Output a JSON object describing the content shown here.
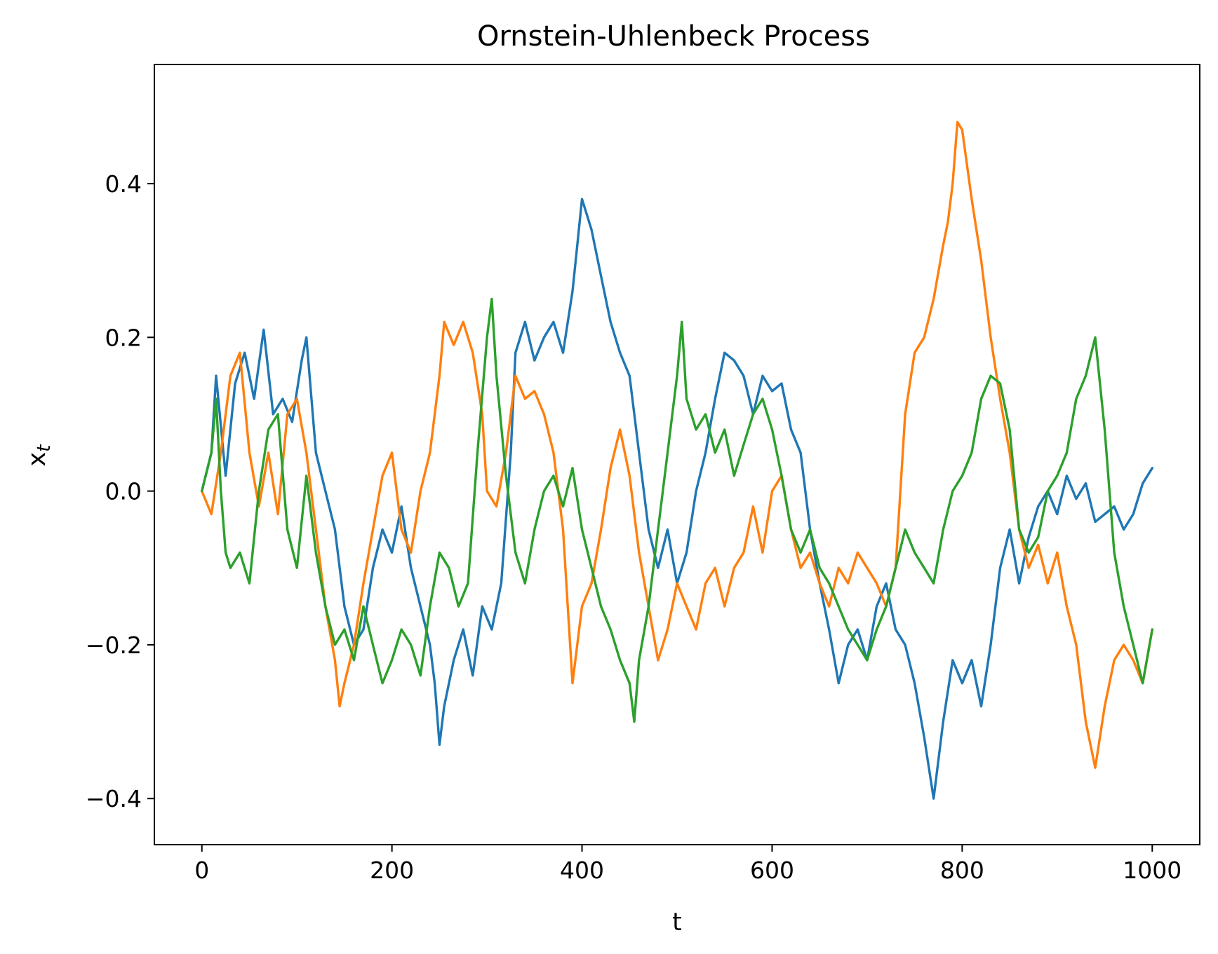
{
  "chart_data": {
    "type": "line",
    "title": "Ornstein-Uhlenbeck Process",
    "xlabel": "t",
    "ylabel_base": "x",
    "ylabel_sub": "t",
    "xlim": [
      -50,
      1050
    ],
    "ylim": [
      -0.46,
      0.555
    ],
    "xticks": [
      0,
      200,
      400,
      600,
      800,
      1000
    ],
    "xtick_labels": [
      "0",
      "200",
      "400",
      "600",
      "800",
      "1000"
    ],
    "yticks": [
      -0.4,
      -0.2,
      0.0,
      0.2,
      0.4
    ],
    "ytick_labels": [
      "−0.4",
      "−0.2",
      "0.0",
      "0.2",
      "0.4"
    ],
    "grid": false,
    "series": [
      {
        "color": "#1f77b4",
        "points": [
          [
            0,
            0.0
          ],
          [
            10,
            0.05
          ],
          [
            15,
            0.15
          ],
          [
            25,
            0.02
          ],
          [
            35,
            0.14
          ],
          [
            45,
            0.18
          ],
          [
            55,
            0.12
          ],
          [
            65,
            0.21
          ],
          [
            75,
            0.1
          ],
          [
            85,
            0.12
          ],
          [
            95,
            0.09
          ],
          [
            105,
            0.17
          ],
          [
            110,
            0.2
          ],
          [
            120,
            0.05
          ],
          [
            130,
            0.0
          ],
          [
            140,
            -0.05
          ],
          [
            150,
            -0.15
          ],
          [
            160,
            -0.2
          ],
          [
            170,
            -0.18
          ],
          [
            180,
            -0.1
          ],
          [
            190,
            -0.05
          ],
          [
            200,
            -0.08
          ],
          [
            210,
            -0.02
          ],
          [
            220,
            -0.1
          ],
          [
            230,
            -0.15
          ],
          [
            240,
            -0.2
          ],
          [
            245,
            -0.25
          ],
          [
            250,
            -0.33
          ],
          [
            255,
            -0.28
          ],
          [
            265,
            -0.22
          ],
          [
            275,
            -0.18
          ],
          [
            285,
            -0.24
          ],
          [
            295,
            -0.15
          ],
          [
            305,
            -0.18
          ],
          [
            315,
            -0.12
          ],
          [
            325,
            0.05
          ],
          [
            330,
            0.18
          ],
          [
            340,
            0.22
          ],
          [
            350,
            0.17
          ],
          [
            360,
            0.2
          ],
          [
            370,
            0.22
          ],
          [
            380,
            0.18
          ],
          [
            390,
            0.26
          ],
          [
            395,
            0.32
          ],
          [
            400,
            0.38
          ],
          [
            410,
            0.34
          ],
          [
            420,
            0.28
          ],
          [
            430,
            0.22
          ],
          [
            440,
            0.18
          ],
          [
            450,
            0.15
          ],
          [
            460,
            0.05
          ],
          [
            470,
            -0.05
          ],
          [
            480,
            -0.1
          ],
          [
            490,
            -0.05
          ],
          [
            500,
            -0.12
          ],
          [
            510,
            -0.08
          ],
          [
            520,
            0.0
          ],
          [
            530,
            0.05
          ],
          [
            540,
            0.12
          ],
          [
            550,
            0.18
          ],
          [
            560,
            0.17
          ],
          [
            570,
            0.15
          ],
          [
            580,
            0.1
          ],
          [
            590,
            0.15
          ],
          [
            600,
            0.13
          ],
          [
            610,
            0.14
          ],
          [
            620,
            0.08
          ],
          [
            630,
            0.05
          ],
          [
            640,
            -0.05
          ],
          [
            650,
            -0.12
          ],
          [
            660,
            -0.18
          ],
          [
            670,
            -0.25
          ],
          [
            680,
            -0.2
          ],
          [
            690,
            -0.18
          ],
          [
            700,
            -0.22
          ],
          [
            710,
            -0.15
          ],
          [
            720,
            -0.12
          ],
          [
            730,
            -0.18
          ],
          [
            740,
            -0.2
          ],
          [
            750,
            -0.25
          ],
          [
            760,
            -0.32
          ],
          [
            770,
            -0.4
          ],
          [
            780,
            -0.3
          ],
          [
            790,
            -0.22
          ],
          [
            800,
            -0.25
          ],
          [
            810,
            -0.22
          ],
          [
            820,
            -0.28
          ],
          [
            830,
            -0.2
          ],
          [
            840,
            -0.1
          ],
          [
            850,
            -0.05
          ],
          [
            860,
            -0.12
          ],
          [
            870,
            -0.06
          ],
          [
            880,
            -0.02
          ],
          [
            890,
            0.0
          ],
          [
            900,
            -0.03
          ],
          [
            910,
            0.02
          ],
          [
            920,
            -0.01
          ],
          [
            930,
            0.01
          ],
          [
            940,
            -0.04
          ],
          [
            950,
            -0.03
          ],
          [
            960,
            -0.02
          ],
          [
            970,
            -0.05
          ],
          [
            980,
            -0.03
          ],
          [
            990,
            0.01
          ],
          [
            1000,
            0.03
          ]
        ]
      },
      {
        "color": "#ff7f0e",
        "points": [
          [
            0,
            0.0
          ],
          [
            10,
            -0.03
          ],
          [
            20,
            0.05
          ],
          [
            30,
            0.15
          ],
          [
            40,
            0.18
          ],
          [
            50,
            0.05
          ],
          [
            60,
            -0.02
          ],
          [
            70,
            0.05
          ],
          [
            80,
            -0.03
          ],
          [
            90,
            0.1
          ],
          [
            100,
            0.12
          ],
          [
            110,
            0.05
          ],
          [
            120,
            -0.05
          ],
          [
            130,
            -0.15
          ],
          [
            140,
            -0.22
          ],
          [
            145,
            -0.28
          ],
          [
            150,
            -0.25
          ],
          [
            160,
            -0.2
          ],
          [
            170,
            -0.12
          ],
          [
            180,
            -0.05
          ],
          [
            190,
            0.02
          ],
          [
            200,
            0.05
          ],
          [
            210,
            -0.05
          ],
          [
            220,
            -0.08
          ],
          [
            230,
            0.0
          ],
          [
            240,
            0.05
          ],
          [
            250,
            0.15
          ],
          [
            255,
            0.22
          ],
          [
            265,
            0.19
          ],
          [
            275,
            0.22
          ],
          [
            285,
            0.18
          ],
          [
            295,
            0.1
          ],
          [
            300,
            0.0
          ],
          [
            310,
            -0.02
          ],
          [
            320,
            0.05
          ],
          [
            330,
            0.15
          ],
          [
            340,
            0.12
          ],
          [
            350,
            0.13
          ],
          [
            360,
            0.1
          ],
          [
            370,
            0.05
          ],
          [
            380,
            -0.05
          ],
          [
            385,
            -0.15
          ],
          [
            390,
            -0.25
          ],
          [
            400,
            -0.15
          ],
          [
            410,
            -0.12
          ],
          [
            420,
            -0.05
          ],
          [
            430,
            0.03
          ],
          [
            440,
            0.08
          ],
          [
            450,
            0.02
          ],
          [
            460,
            -0.08
          ],
          [
            470,
            -0.15
          ],
          [
            480,
            -0.22
          ],
          [
            490,
            -0.18
          ],
          [
            500,
            -0.12
          ],
          [
            510,
            -0.15
          ],
          [
            520,
            -0.18
          ],
          [
            530,
            -0.12
          ],
          [
            540,
            -0.1
          ],
          [
            550,
            -0.15
          ],
          [
            560,
            -0.1
          ],
          [
            570,
            -0.08
          ],
          [
            580,
            -0.02
          ],
          [
            590,
            -0.08
          ],
          [
            600,
            0.0
          ],
          [
            610,
            0.02
          ],
          [
            620,
            -0.05
          ],
          [
            630,
            -0.1
          ],
          [
            640,
            -0.08
          ],
          [
            650,
            -0.12
          ],
          [
            660,
            -0.15
          ],
          [
            670,
            -0.1
          ],
          [
            680,
            -0.12
          ],
          [
            690,
            -0.08
          ],
          [
            700,
            -0.1
          ],
          [
            710,
            -0.12
          ],
          [
            720,
            -0.15
          ],
          [
            730,
            -0.1
          ],
          [
            735,
            0.0
          ],
          [
            740,
            0.1
          ],
          [
            750,
            0.18
          ],
          [
            760,
            0.2
          ],
          [
            770,
            0.25
          ],
          [
            780,
            0.32
          ],
          [
            785,
            0.35
          ],
          [
            790,
            0.4
          ],
          [
            795,
            0.48
          ],
          [
            800,
            0.47
          ],
          [
            810,
            0.38
          ],
          [
            820,
            0.3
          ],
          [
            830,
            0.2
          ],
          [
            840,
            0.12
          ],
          [
            850,
            0.05
          ],
          [
            860,
            -0.05
          ],
          [
            870,
            -0.1
          ],
          [
            880,
            -0.07
          ],
          [
            890,
            -0.12
          ],
          [
            900,
            -0.08
          ],
          [
            910,
            -0.15
          ],
          [
            920,
            -0.2
          ],
          [
            930,
            -0.3
          ],
          [
            940,
            -0.36
          ],
          [
            950,
            -0.28
          ],
          [
            960,
            -0.22
          ],
          [
            970,
            -0.2
          ],
          [
            980,
            -0.22
          ],
          [
            990,
            -0.25
          ],
          [
            1000,
            -0.18
          ]
        ]
      },
      {
        "color": "#2ca02c",
        "points": [
          [
            0,
            0.0
          ],
          [
            10,
            0.05
          ],
          [
            15,
            0.12
          ],
          [
            20,
            0.0
          ],
          [
            25,
            -0.08
          ],
          [
            30,
            -0.1
          ],
          [
            40,
            -0.08
          ],
          [
            50,
            -0.12
          ],
          [
            60,
            0.0
          ],
          [
            70,
            0.08
          ],
          [
            80,
            0.1
          ],
          [
            90,
            -0.05
          ],
          [
            100,
            -0.1
          ],
          [
            110,
            0.02
          ],
          [
            120,
            -0.08
          ],
          [
            130,
            -0.15
          ],
          [
            140,
            -0.2
          ],
          [
            150,
            -0.18
          ],
          [
            160,
            -0.22
          ],
          [
            170,
            -0.15
          ],
          [
            180,
            -0.2
          ],
          [
            190,
            -0.25
          ],
          [
            200,
            -0.22
          ],
          [
            210,
            -0.18
          ],
          [
            220,
            -0.2
          ],
          [
            230,
            -0.24
          ],
          [
            240,
            -0.15
          ],
          [
            250,
            -0.08
          ],
          [
            260,
            -0.1
          ],
          [
            270,
            -0.15
          ],
          [
            280,
            -0.12
          ],
          [
            290,
            0.05
          ],
          [
            300,
            0.2
          ],
          [
            305,
            0.25
          ],
          [
            310,
            0.15
          ],
          [
            320,
            0.02
          ],
          [
            330,
            -0.08
          ],
          [
            340,
            -0.12
          ],
          [
            350,
            -0.05
          ],
          [
            360,
            0.0
          ],
          [
            370,
            0.02
          ],
          [
            380,
            -0.02
          ],
          [
            390,
            0.03
          ],
          [
            400,
            -0.05
          ],
          [
            410,
            -0.1
          ],
          [
            420,
            -0.15
          ],
          [
            430,
            -0.18
          ],
          [
            440,
            -0.22
          ],
          [
            450,
            -0.25
          ],
          [
            455,
            -0.3
          ],
          [
            460,
            -0.22
          ],
          [
            470,
            -0.15
          ],
          [
            480,
            -0.05
          ],
          [
            490,
            0.05
          ],
          [
            500,
            0.15
          ],
          [
            505,
            0.22
          ],
          [
            510,
            0.12
          ],
          [
            520,
            0.08
          ],
          [
            530,
            0.1
          ],
          [
            540,
            0.05
          ],
          [
            550,
            0.08
          ],
          [
            560,
            0.02
          ],
          [
            570,
            0.06
          ],
          [
            580,
            0.1
          ],
          [
            590,
            0.12
          ],
          [
            600,
            0.08
          ],
          [
            610,
            0.02
          ],
          [
            620,
            -0.05
          ],
          [
            630,
            -0.08
          ],
          [
            640,
            -0.05
          ],
          [
            650,
            -0.1
          ],
          [
            660,
            -0.12
          ],
          [
            670,
            -0.15
          ],
          [
            680,
            -0.18
          ],
          [
            690,
            -0.2
          ],
          [
            700,
            -0.22
          ],
          [
            710,
            -0.18
          ],
          [
            720,
            -0.15
          ],
          [
            730,
            -0.1
          ],
          [
            740,
            -0.05
          ],
          [
            750,
            -0.08
          ],
          [
            760,
            -0.1
          ],
          [
            770,
            -0.12
          ],
          [
            780,
            -0.05
          ],
          [
            790,
            0.0
          ],
          [
            800,
            0.02
          ],
          [
            810,
            0.05
          ],
          [
            820,
            0.12
          ],
          [
            830,
            0.15
          ],
          [
            840,
            0.14
          ],
          [
            850,
            0.08
          ],
          [
            860,
            -0.05
          ],
          [
            870,
            -0.08
          ],
          [
            880,
            -0.06
          ],
          [
            890,
            0.0
          ],
          [
            900,
            0.02
          ],
          [
            910,
            0.05
          ],
          [
            920,
            0.12
          ],
          [
            930,
            0.15
          ],
          [
            940,
            0.2
          ],
          [
            950,
            0.08
          ],
          [
            960,
            -0.08
          ],
          [
            970,
            -0.15
          ],
          [
            980,
            -0.2
          ],
          [
            990,
            -0.25
          ],
          [
            1000,
            -0.18
          ]
        ]
      }
    ]
  }
}
